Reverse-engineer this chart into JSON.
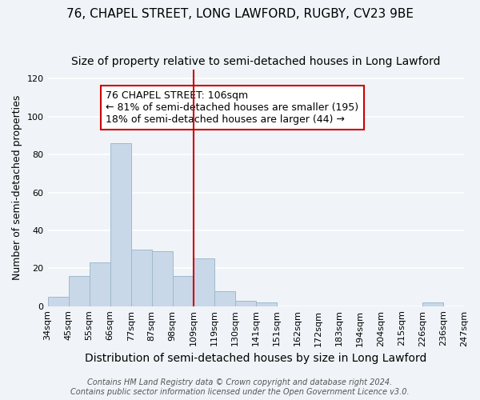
{
  "title1": "76, CHAPEL STREET, LONG LAWFORD, RUGBY, CV23 9BE",
  "title2": "Size of property relative to semi-detached houses in Long Lawford",
  "xlabel": "Distribution of semi-detached houses by size in Long Lawford",
  "ylabel": "Number of semi-detached properties",
  "bin_labels": [
    "34sqm",
    "45sqm",
    "55sqm",
    "66sqm",
    "77sqm",
    "87sqm",
    "98sqm",
    "109sqm",
    "119sqm",
    "130sqm",
    "141sqm",
    "151sqm",
    "162sqm",
    "172sqm",
    "183sqm",
    "194sqm",
    "204sqm",
    "215sqm",
    "226sqm",
    "236sqm",
    "247sqm"
  ],
  "bar_heights": [
    5,
    16,
    23,
    86,
    30,
    29,
    16,
    25,
    8,
    3,
    2,
    0,
    0,
    0,
    0,
    0,
    0,
    0,
    2,
    0
  ],
  "bar_color": "#c8d8e8",
  "bar_edge_color": "#a0b8cc",
  "vline_color": "#cc0000",
  "vline_label_index": 7,
  "ylim": [
    0,
    125
  ],
  "yticks": [
    0,
    20,
    40,
    60,
    80,
    100,
    120
  ],
  "annotation_title": "76 CHAPEL STREET: 106sqm",
  "annotation_line1": "← 81% of semi-detached houses are smaller (195)",
  "annotation_line2": "18% of semi-detached houses are larger (44) →",
  "footer1": "Contains HM Land Registry data © Crown copyright and database right 2024.",
  "footer2": "Contains public sector information licensed under the Open Government Licence v3.0.",
  "background_color": "#f0f4f8",
  "grid_color": "#ffffff",
  "title1_fontsize": 11,
  "title2_fontsize": 10,
  "axis_label_fontsize": 9,
  "tick_fontsize": 8,
  "annotation_fontsize": 9,
  "footer_fontsize": 7
}
